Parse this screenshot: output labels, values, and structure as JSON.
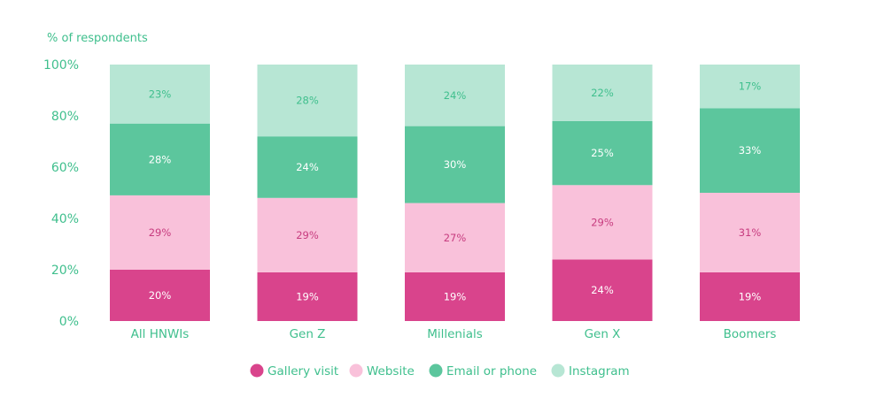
{
  "chart_data": {
    "type": "bar",
    "stacked": true,
    "ylabel": "% of respondents",
    "ylim": [
      0,
      100
    ],
    "yticks": [
      "0%",
      "20%",
      "40%",
      "60%",
      "80%",
      "100%"
    ],
    "grid": false,
    "legend_position": "bottom",
    "categories": [
      "All HNWIs",
      "Gen Z",
      "Millenials",
      "Gen X",
      "Boomers"
    ],
    "series": [
      {
        "name": "Gallery visit",
        "color": "#d9448c",
        "label_color": "#ffffff",
        "values": [
          20,
          19,
          19,
          24,
          19
        ],
        "labels": [
          "20%",
          "19%",
          "19%",
          "24%",
          "19%"
        ]
      },
      {
        "name": "Website",
        "color": "#f9c1da",
        "label_color": "#c73c7f",
        "values": [
          29,
          29,
          27,
          29,
          31
        ],
        "labels": [
          "29%",
          "29%",
          "27%",
          "29%",
          "31%"
        ]
      },
      {
        "name": "Email or phone",
        "color": "#5cc69d",
        "label_color": "#ffffff",
        "values": [
          28,
          24,
          30,
          25,
          33
        ],
        "labels": [
          "28%",
          "24%",
          "30%",
          "25%",
          "33%"
        ]
      },
      {
        "name": "Instagram",
        "color": "#b7e6d4",
        "label_color": "#3fbf8d",
        "values": [
          23,
          28,
          24,
          22,
          17
        ],
        "labels": [
          "23%",
          "28%",
          "24%",
          "22%",
          "17%"
        ]
      }
    ]
  }
}
